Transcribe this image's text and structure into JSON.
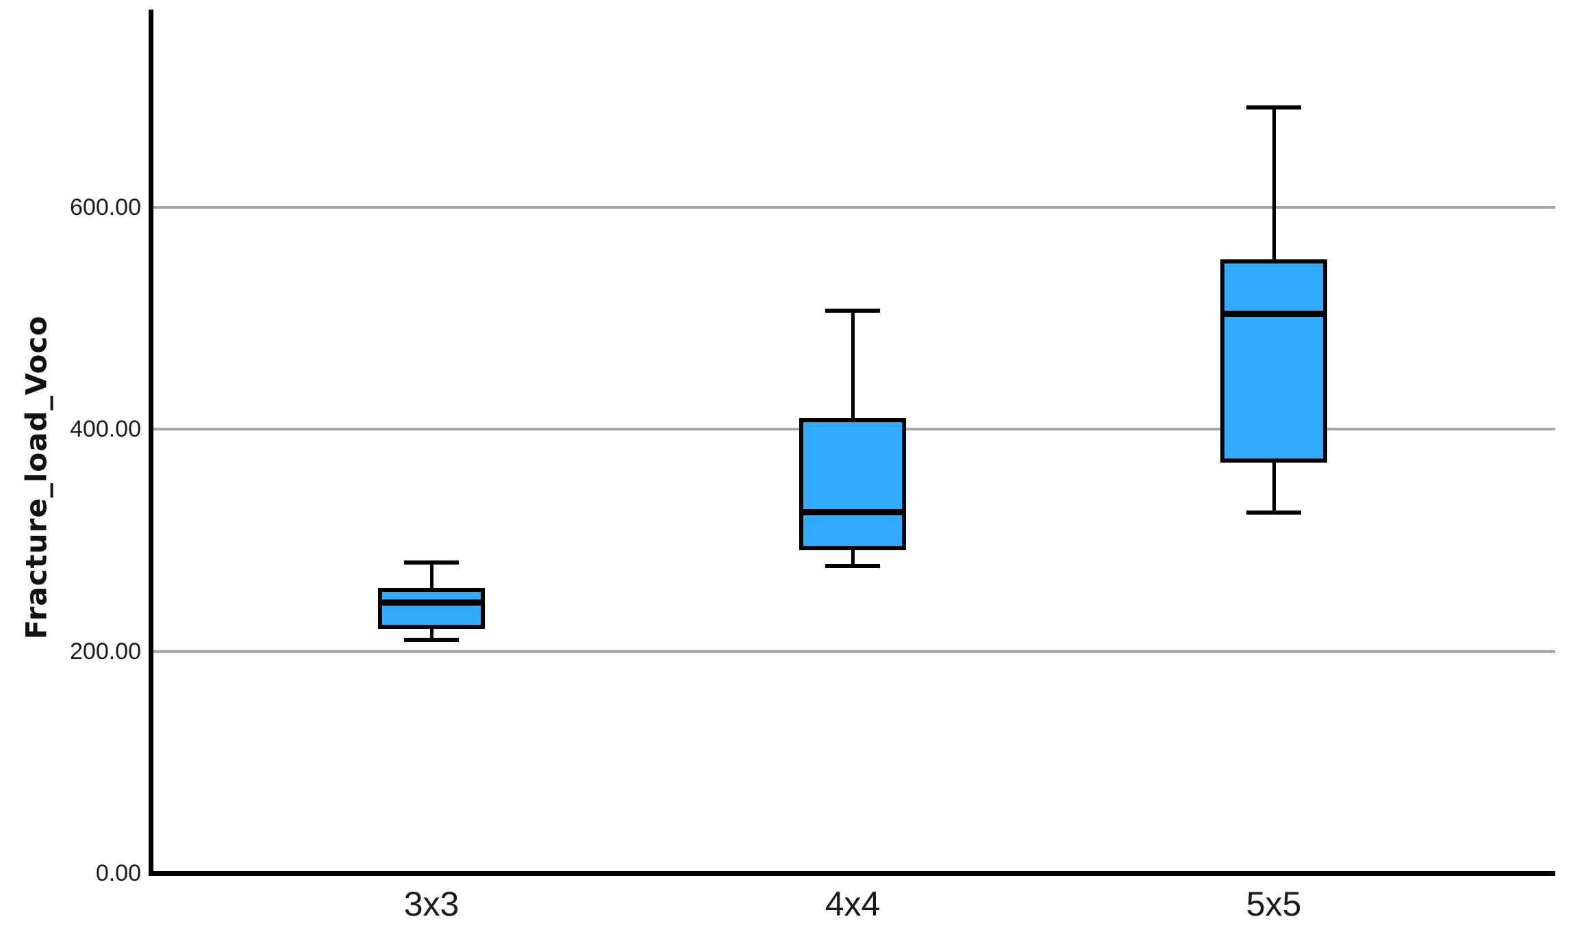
{
  "chart_data": {
    "type": "boxplot",
    "title": "",
    "xlabel": "",
    "ylabel": "Fracture_load_Voco",
    "categories": [
      "3x3",
      "4x4",
      "5x5"
    ],
    "series": [
      {
        "category": "3x3",
        "min": 210,
        "q1": 222,
        "median": 244,
        "q3": 255,
        "max": 280
      },
      {
        "category": "4x4",
        "min": 277,
        "q1": 293,
        "median": 325,
        "q3": 408,
        "max": 507
      },
      {
        "category": "5x5",
        "min": 325,
        "q1": 372,
        "median": 504,
        "q3": 551,
        "max": 690
      }
    ],
    "yticks": [
      0,
      200,
      400,
      600
    ],
    "ytick_labels": [
      "0.00",
      "200.00",
      "400.00",
      "600.00"
    ],
    "ylim": [
      0,
      778
    ],
    "grid": "horizontal-only",
    "legend": "none",
    "box_fill_color": "#31ABFF",
    "box_border_color": "#000000",
    "median_color": "#000000",
    "whisker_color": "#000000",
    "gridline_color": "#A8A8A8",
    "axis_color": "#000000",
    "text_color": "#1A1A1A",
    "background_color": "#FFFFFF"
  }
}
